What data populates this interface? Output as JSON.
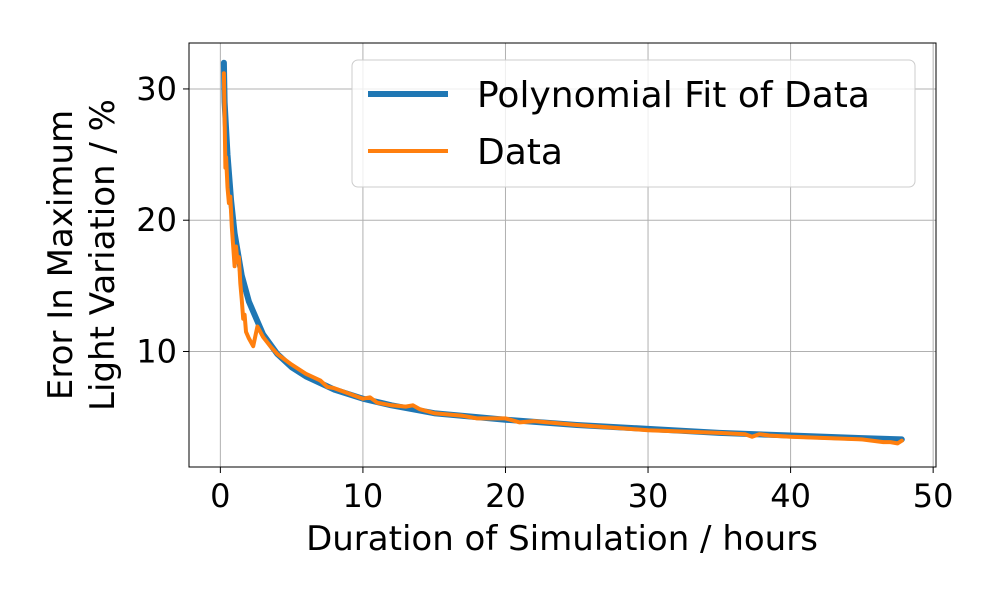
{
  "chart_data": {
    "type": "line",
    "title": "",
    "xlabel": "Duration of Simulation / hours",
    "ylabel_lines": [
      "Eror In Maximum",
      "Light Variation / %"
    ],
    "xlim": [
      -2.2,
      50.2
    ],
    "ylim": [
      1.2,
      33.5
    ],
    "xticks": [
      0,
      10,
      20,
      30,
      40,
      50
    ],
    "xtick_labels": [
      "0",
      "10",
      "20",
      "30",
      "40",
      "50"
    ],
    "yticks": [
      10,
      20,
      30
    ],
    "ytick_labels": [
      "10",
      "20",
      "30"
    ],
    "grid": true,
    "legend_position": "top-right",
    "series": [
      {
        "name": "Polynomial Fit of Data",
        "color": "#1f77b4",
        "x": [
          0.25,
          0.3,
          0.5,
          0.75,
          1.0,
          1.5,
          2.0,
          3.0,
          4.0,
          5.0,
          6.0,
          8.0,
          10.0,
          12.0,
          15.0,
          18.0,
          20.0,
          25.0,
          30.0,
          35.0,
          40.0,
          45.0,
          47.8
        ],
        "y": [
          32.0,
          29.0,
          25.0,
          21.5,
          19.0,
          15.8,
          13.8,
          11.3,
          9.8,
          8.8,
          8.1,
          7.1,
          6.4,
          5.9,
          5.3,
          5.0,
          4.8,
          4.4,
          4.1,
          3.8,
          3.6,
          3.4,
          3.3
        ]
      },
      {
        "name": "Data",
        "color": "#ff7f0e",
        "x": [
          0.25,
          0.35,
          0.4,
          0.5,
          0.6,
          0.7,
          0.8,
          0.9,
          1.0,
          1.1,
          1.2,
          1.3,
          1.4,
          1.5,
          1.6,
          1.7,
          1.8,
          2.0,
          2.3,
          2.6,
          2.8,
          3.0,
          3.5,
          4.0,
          5.0,
          6.0,
          7.0,
          7.5,
          8.0,
          9.0,
          10.0,
          10.5,
          11.0,
          12.0,
          13.0,
          13.5,
          14.0,
          15.0,
          17.0,
          18.0,
          20.0,
          21.0,
          22.0,
          25.0,
          30.0,
          35.0,
          36.8,
          37.3,
          37.8,
          38.5,
          40.0,
          45.0,
          46.5,
          47.0,
          47.5,
          47.8
        ],
        "y": [
          31.2,
          24.0,
          24.8,
          22.5,
          21.3,
          21.8,
          19.5,
          18.0,
          16.5,
          18.0,
          16.8,
          17.2,
          15.2,
          14.0,
          12.5,
          12.8,
          11.5,
          11.0,
          10.4,
          11.9,
          11.5,
          11.1,
          10.4,
          9.8,
          9.0,
          8.3,
          7.8,
          7.3,
          7.2,
          6.8,
          6.4,
          6.5,
          6.1,
          5.9,
          5.8,
          5.9,
          5.6,
          5.3,
          5.1,
          4.9,
          4.9,
          4.6,
          4.7,
          4.4,
          4.0,
          3.8,
          3.7,
          3.5,
          3.7,
          3.6,
          3.5,
          3.3,
          3.1,
          3.1,
          3.0,
          3.2
        ]
      }
    ]
  }
}
